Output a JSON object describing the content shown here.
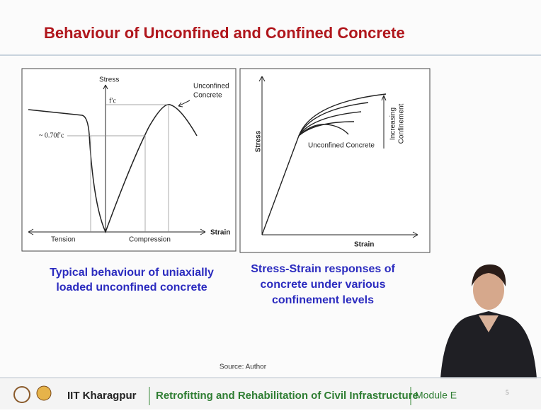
{
  "title": "Behaviour of Unconfined and Confined Concrete",
  "figures": [
    {
      "labels": {
        "stress": "Stress",
        "strain": "Strain",
        "curve": [
          "Unconfined",
          "Concrete"
        ],
        "peak": "f′c",
        "level": "~ 0.70f′c",
        "tension": "Tension",
        "compression": "Compression"
      },
      "caption": [
        "Typical behaviour of uniaxially",
        "loaded unconfined concrete"
      ]
    },
    {
      "labels": {
        "stress": "Stress",
        "strain": "Strain",
        "curve": "Unconfined Concrete",
        "confinement": [
          "Increasing",
          "Confinement"
        ]
      },
      "caption": [
        "Stress-Strain responses of",
        "concrete under various",
        "confinement levels"
      ]
    }
  ],
  "source": "Source: Author",
  "footer": {
    "institute": "IIT Kharagpur",
    "course": "Retrofitting and Rehabilitation of Civil Infrastructure",
    "module": "Module E",
    "page": "5"
  }
}
